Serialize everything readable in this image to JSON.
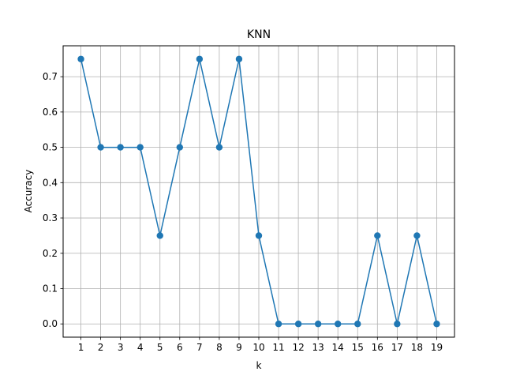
{
  "chart_data": {
    "type": "line",
    "title": "KNN",
    "xlabel": "k",
    "ylabel": "Accuracy",
    "x": [
      1,
      2,
      3,
      4,
      5,
      6,
      7,
      8,
      9,
      10,
      11,
      12,
      13,
      14,
      15,
      16,
      17,
      18,
      19
    ],
    "series": [
      {
        "values": [
          0.75,
          0.5,
          0.5,
          0.5,
          0.25,
          0.5,
          0.75,
          0.5,
          0.75,
          0.25,
          0.0,
          0.0,
          0.0,
          0.0,
          0.0,
          0.25,
          0.0,
          0.25,
          0.0
        ],
        "color": "#1f77b4",
        "marker": "circle"
      }
    ],
    "xticks": [
      "1",
      "2",
      "3",
      "4",
      "5",
      "6",
      "7",
      "8",
      "9",
      "10",
      "11",
      "12",
      "13",
      "14",
      "15",
      "16",
      "17",
      "18",
      "19"
    ],
    "yticks": [
      0.0,
      0.1,
      0.2,
      0.3,
      0.4,
      0.5,
      0.6,
      0.7
    ],
    "ytick_labels": [
      "0.0",
      "0.1",
      "0.2",
      "0.3",
      "0.4",
      "0.5",
      "0.6",
      "0.7"
    ],
    "xlim": [
      0.1,
      19.9
    ],
    "ylim": [
      -0.0375,
      0.7875
    ],
    "grid": true,
    "legend": "none"
  }
}
